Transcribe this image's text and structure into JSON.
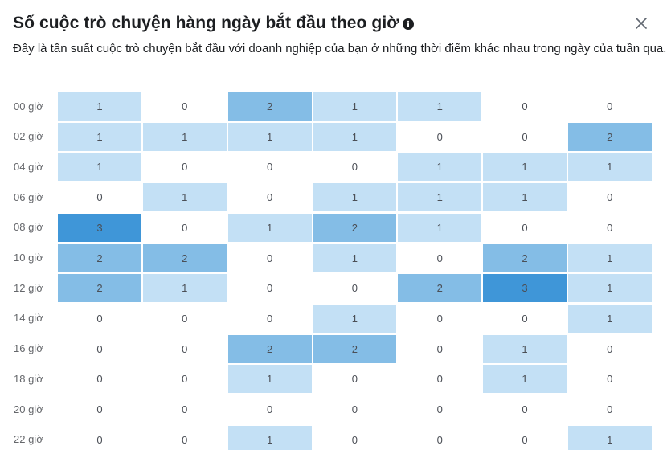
{
  "dialog": {
    "title": "Số cuộc trò chuyện hàng ngày bắt đầu theo giờ",
    "subtitle": "Đây là tần suất cuộc trò chuyện bắt đầu với doanh nghiệp của bạn ở những thời điểm khác nhau trong ngày của tuần qua.",
    "info_icon": "info-icon",
    "close_icon": "close-icon"
  },
  "colors": {
    "level_0": "#ffffff",
    "level_1": "#c3e0f5",
    "level_2": "#84bde6",
    "level_3": "#3f96d8",
    "value_text": "#4b4f56"
  },
  "chart_data": {
    "type": "heatmap",
    "title": "Số cuộc trò chuyện hàng ngày bắt đầu theo giờ",
    "rows": [
      "00 giờ",
      "02 giờ",
      "04 giờ",
      "06 giờ",
      "08 giờ",
      "10 giờ",
      "12 giờ",
      "14 giờ",
      "16 giờ",
      "18 giờ",
      "20 giờ",
      "22 giờ"
    ],
    "columns": 7,
    "values": [
      [
        1,
        0,
        2,
        1,
        1,
        0,
        0
      ],
      [
        1,
        1,
        1,
        1,
        0,
        0,
        2
      ],
      [
        1,
        0,
        0,
        0,
        1,
        1,
        1
      ],
      [
        0,
        1,
        0,
        1,
        1,
        1,
        0
      ],
      [
        3,
        0,
        1,
        2,
        1,
        0,
        0
      ],
      [
        2,
        2,
        0,
        1,
        0,
        2,
        1
      ],
      [
        2,
        1,
        0,
        0,
        2,
        3,
        1
      ],
      [
        0,
        0,
        0,
        1,
        0,
        0,
        1
      ],
      [
        0,
        0,
        2,
        2,
        0,
        1,
        0
      ],
      [
        0,
        0,
        1,
        0,
        0,
        1,
        0
      ],
      [
        0,
        0,
        0,
        0,
        0,
        0,
        0
      ],
      [
        0,
        0,
        1,
        0,
        0,
        0,
        1
      ]
    ],
    "value_range": [
      0,
      3
    ]
  }
}
